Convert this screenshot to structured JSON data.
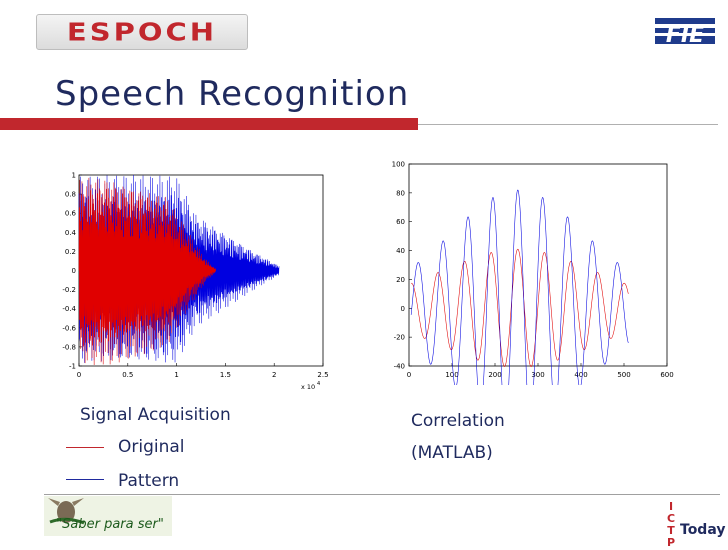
{
  "header": {
    "logo_left_text": "ESPOCH",
    "logo_right_text": "FIE",
    "title": "Speech Recognition",
    "accent": "#c1272d",
    "title_color": "#1f2a5e"
  },
  "chart_data": [
    {
      "type": "line",
      "title": "",
      "xlabel": "",
      "ylabel": "",
      "x_scale_label": "x 10^4",
      "xlim": [
        0,
        2.5
      ],
      "ylim": [
        -1,
        1
      ],
      "x_ticks": [
        "0",
        "0.5",
        "1",
        "1.5",
        "2",
        "2.5"
      ],
      "y_ticks": [
        "1",
        "0.8",
        "0.6",
        "0.4",
        "0.2",
        "0",
        "-0.2",
        "-0.4",
        "-0.6",
        "-0.8",
        "-1"
      ],
      "series": [
        {
          "name": "Original",
          "color": "#e00000",
          "envelope": {
            "x": [
              0,
              0.1,
              0.3,
              0.6,
              0.9,
              1.1,
              1.3,
              1.4
            ],
            "amp": [
              0.98,
              1.0,
              1.0,
              0.9,
              0.8,
              0.45,
              0.12,
              0.02
            ]
          }
        },
        {
          "name": "Pattern",
          "color": "#0000e0",
          "envelope": {
            "x": [
              0,
              0.2,
              0.6,
              1.0,
              1.2,
              1.5,
              1.8,
              2.0,
              2.05
            ],
            "amp": [
              1.0,
              1.0,
              1.0,
              1.0,
              0.6,
              0.4,
              0.2,
              0.08,
              0.05
            ]
          }
        }
      ],
      "grid": false
    },
    {
      "type": "line",
      "title": "",
      "xlabel": "",
      "ylabel": "",
      "xlim": [
        0,
        600
      ],
      "ylim": [
        -40,
        100
      ],
      "x_ticks": [
        "0",
        "100",
        "200",
        "300",
        "400",
        "500",
        "600"
      ],
      "y_ticks": [
        "100",
        "80",
        "60",
        "40",
        "20",
        "0",
        "-20",
        "-40"
      ],
      "series": [
        {
          "name": "Original",
          "color": "#e00000",
          "peak": {
            "x": 253,
            "y": 41
          },
          "x_range": [
            5,
            510
          ]
        },
        {
          "name": "Pattern",
          "color": "#0000e0",
          "peak": {
            "x": 253,
            "y": 82
          },
          "x_range": [
            5,
            510
          ]
        }
      ],
      "grid": false
    }
  ],
  "labels": {
    "signal_acquisition": "Signal Acquisition",
    "original": "Original",
    "pattern": "Pattern",
    "correlation": "Correlation",
    "matlab": "(MATLAB)"
  },
  "footer": {
    "motto": "\"Saber para ser\"",
    "ictp_letters": "ICTP",
    "ictp_today": "Today"
  }
}
